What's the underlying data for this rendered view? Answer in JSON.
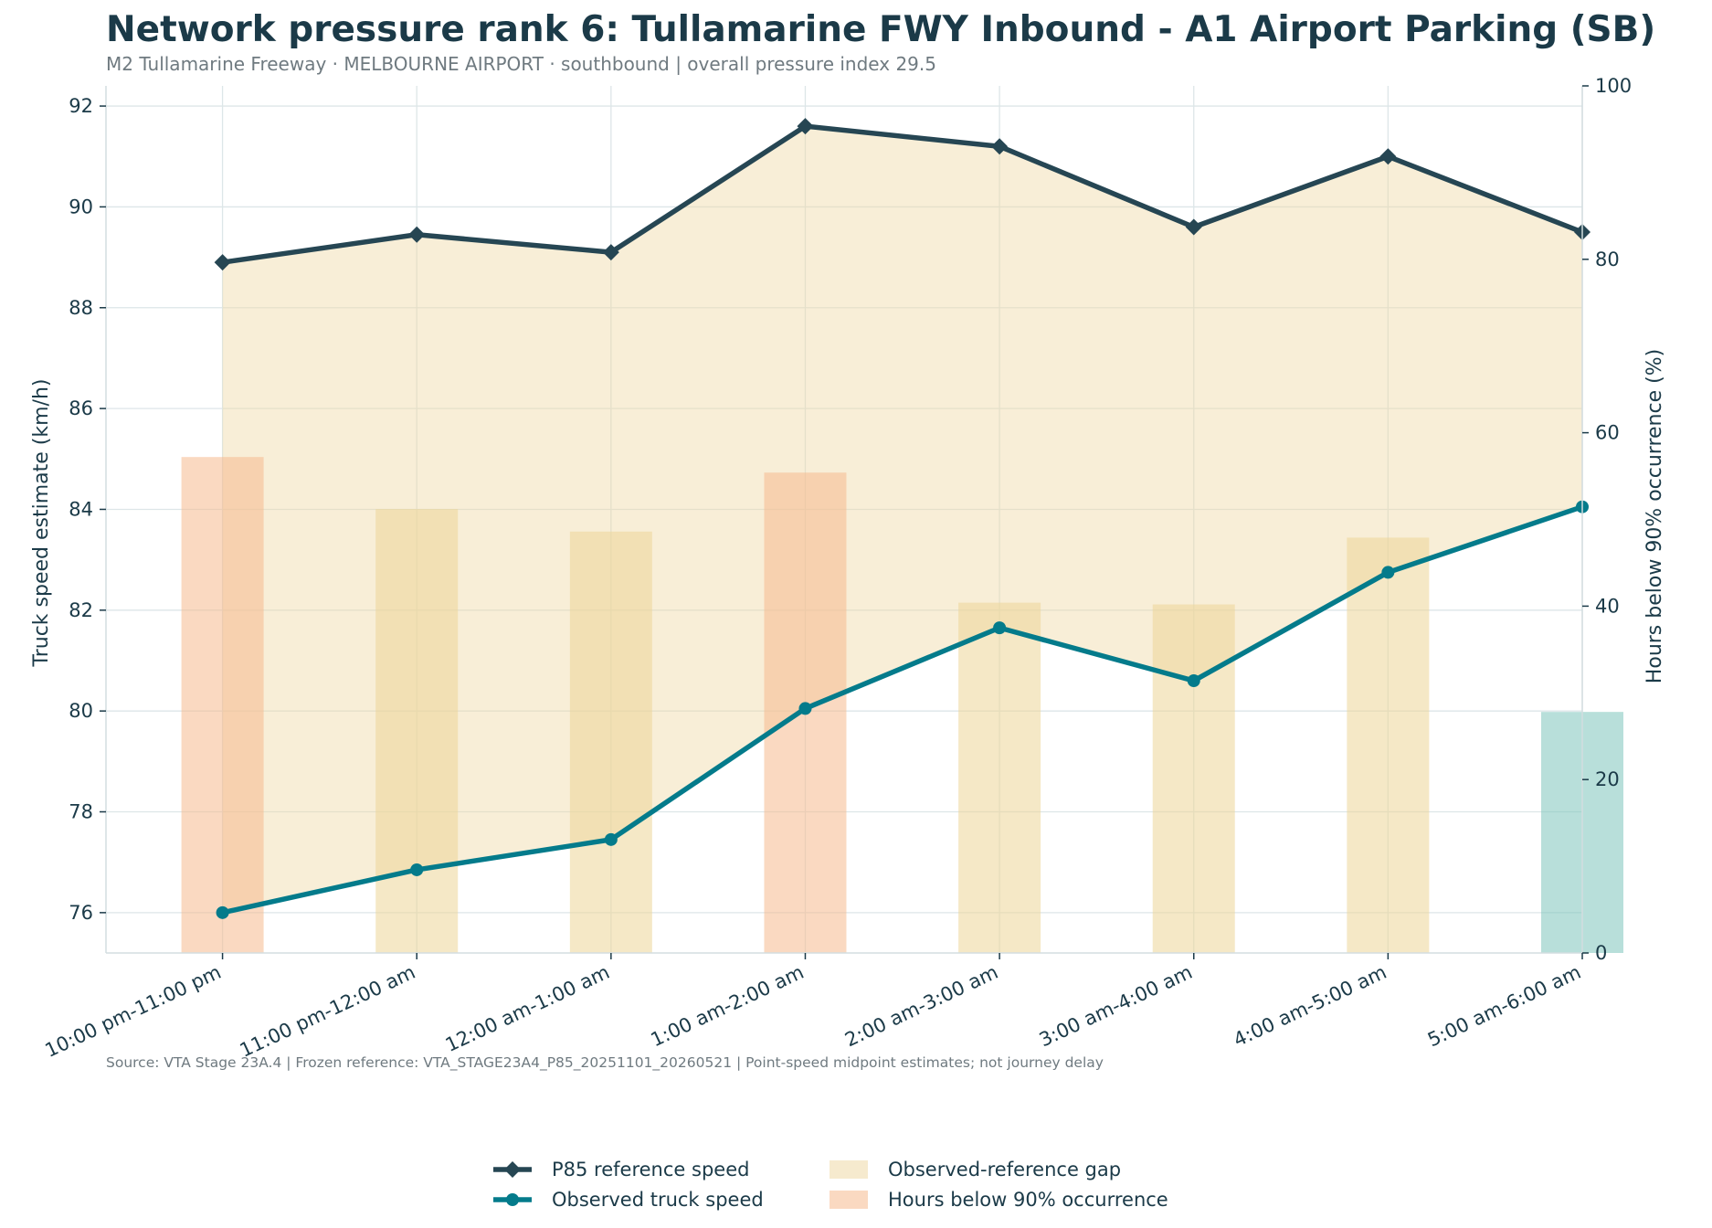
{
  "chart_data": {
    "type": "line",
    "title": "Network pressure rank 6: Tullamarine FWY Inbound - A1 Airport Parking (SB)",
    "subtitle": "M2 Tullamarine Freeway · MELBOURNE AIRPORT · southbound | overall pressure index 29.5",
    "source_note": "Source: VTA Stage 23A.4 | Frozen reference: VTA_STAGE23A4_P85_20251101_20260521 | Point-speed midpoint estimates; not journey delay",
    "categories": [
      "10:00 pm-11:00 pm",
      "11:00 pm-12:00 am",
      "12:00 am-1:00 am",
      "1:00 am-2:00 am",
      "2:00 am-3:00 am",
      "3:00 am-4:00 am",
      "4:00 am-5:00 am",
      "5:00 am-6:00 am"
    ],
    "ylabel": "Truck speed estimate (km/h)",
    "y2label": "Hours below 90% occurrence (%)",
    "ylim": [
      75.2,
      92.4
    ],
    "y2lim": [
      0,
      100
    ],
    "yticks": [
      76,
      78,
      80,
      82,
      84,
      86,
      88,
      90,
      92
    ],
    "y2ticks": [
      0,
      20,
      40,
      60,
      80,
      100
    ],
    "grid": true,
    "legend_position": "bottom-center",
    "series": [
      {
        "name": "P85 reference speed",
        "kind": "line",
        "axis": "left",
        "marker": "diamond",
        "color": "#264653",
        "values": [
          88.9,
          89.45,
          89.1,
          91.6,
          91.2,
          89.6,
          91.0,
          89.5
        ]
      },
      {
        "name": "Observed truck speed",
        "kind": "line",
        "axis": "left",
        "marker": "circle",
        "color": "#047b8b",
        "values": [
          76.0,
          76.85,
          77.45,
          80.05,
          81.65,
          80.6,
          82.75,
          84.05
        ]
      },
      {
        "name": "Observed-reference gap",
        "kind": "area",
        "color": "#efd9a6"
      },
      {
        "name": "Hours below 90% occurrence",
        "kind": "bar",
        "axis": "right",
        "values": [
          57.2,
          51.2,
          48.6,
          55.4,
          40.4,
          40.2,
          47.9,
          27.8
        ],
        "colors": [
          "#f5b98e",
          "#ecd597",
          "#ecd597",
          "#f5b98e",
          "#ecd597",
          "#ecd597",
          "#ecd597",
          "#7dc4bc"
        ]
      }
    ],
    "legend": [
      {
        "label": "P85 reference speed",
        "swatch": "line-diamond",
        "color": "#264653"
      },
      {
        "label": "Observed truck speed",
        "swatch": "line-circle",
        "color": "#047b8b"
      },
      {
        "label": "Observed-reference gap",
        "swatch": "patch",
        "color": "#efd9a6"
      },
      {
        "label": "Hours below 90% occurrence",
        "swatch": "patch",
        "color": "#f5b98e"
      }
    ]
  }
}
